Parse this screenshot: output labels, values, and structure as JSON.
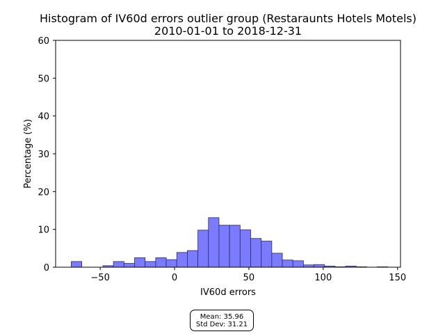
{
  "chart_data": {
    "type": "bar",
    "title": "Histogram of IV60d errors outlier group (Restaraunts Hotels Motels)",
    "subtitle": "2010-01-01 to 2018-12-31",
    "xlabel": "IV60d errors",
    "ylabel": "Percentage (%)",
    "xlim": [
      -80,
      152
    ],
    "ylim": [
      0,
      60
    ],
    "xticks": [
      -50,
      0,
      50,
      100,
      150
    ],
    "xtick_labels": [
      "−50",
      "0",
      "50",
      "100",
      "150"
    ],
    "yticks": [
      0,
      10,
      20,
      30,
      40,
      50,
      60
    ],
    "ytick_labels": [
      "0",
      "10",
      "20",
      "30",
      "40",
      "50",
      "60"
    ],
    "grid": false,
    "bar_color": "#7b7bff",
    "bar_edge_color": "#2a2a66",
    "bin_width": 7.1,
    "bins": [
      {
        "x_start": -69.5,
        "value": 1.5
      },
      {
        "x_start": -62.4,
        "value": 0
      },
      {
        "x_start": -55.3,
        "value": 0
      },
      {
        "x_start": -48.2,
        "value": 0.4
      },
      {
        "x_start": -41.1,
        "value": 1.5
      },
      {
        "x_start": -34.0,
        "value": 1.0
      },
      {
        "x_start": -26.9,
        "value": 2.5
      },
      {
        "x_start": -19.8,
        "value": 1.5
      },
      {
        "x_start": -12.7,
        "value": 2.5
      },
      {
        "x_start": -5.6,
        "value": 2.0
      },
      {
        "x_start": 1.5,
        "value": 3.9
      },
      {
        "x_start": 8.6,
        "value": 4.4
      },
      {
        "x_start": 15.7,
        "value": 9.8
      },
      {
        "x_start": 22.8,
        "value": 13.1
      },
      {
        "x_start": 29.9,
        "value": 11.1
      },
      {
        "x_start": 37.0,
        "value": 11.1
      },
      {
        "x_start": 44.1,
        "value": 9.9
      },
      {
        "x_start": 51.2,
        "value": 7.6
      },
      {
        "x_start": 58.3,
        "value": 6.9
      },
      {
        "x_start": 65.4,
        "value": 3.7
      },
      {
        "x_start": 72.5,
        "value": 1.9
      },
      {
        "x_start": 79.6,
        "value": 1.7
      },
      {
        "x_start": 86.7,
        "value": 0.6
      },
      {
        "x_start": 93.8,
        "value": 0.7
      },
      {
        "x_start": 100.9,
        "value": 0.3
      },
      {
        "x_start": 108.0,
        "value": 0.1
      },
      {
        "x_start": 115.1,
        "value": 0.3
      },
      {
        "x_start": 122.2,
        "value": 0.1
      },
      {
        "x_start": 129.3,
        "value": 0
      },
      {
        "x_start": 136.4,
        "value": 0.1
      }
    ],
    "stats": {
      "mean_label": "Mean: 35.96",
      "std_label": "Std Dev: 31.21"
    }
  }
}
